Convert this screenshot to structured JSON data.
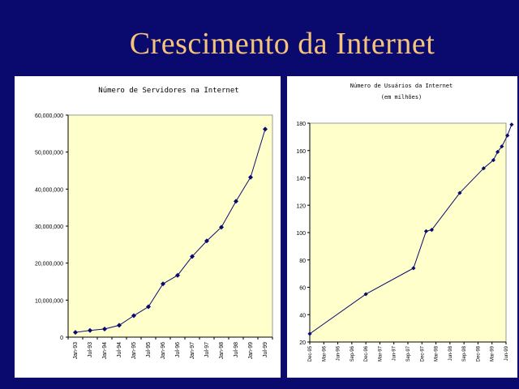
{
  "slide": {
    "title": "Crescimento da Internet"
  },
  "colors": {
    "background": "#0a0a6e",
    "title": "#f5c47a",
    "plot_area": "#ffffcc",
    "line": "#0a0a6e"
  },
  "chart_data": [
    {
      "type": "line",
      "title": "Número de Servidores na Internet",
      "categories": [
        "Jan-93",
        "Jul-93",
        "Jan-94",
        "Jul-94",
        "Jan-95",
        "Jul-95",
        "Jan-96",
        "Jul-96",
        "Jan-97",
        "Jul-97",
        "Jan-98",
        "Jul-98",
        "Jan-99",
        "Jul-99"
      ],
      "values": [
        1300000,
        1800000,
        2200000,
        3200000,
        5800000,
        8200000,
        14400000,
        16700000,
        21800000,
        26000000,
        29700000,
        36700000,
        43200000,
        56200000
      ],
      "yticks": [
        "0",
        "10,000,000",
        "20,000,000",
        "30,000,000",
        "40,000,000",
        "50,000,000",
        "60,000,000"
      ],
      "ylim": [
        0,
        60000000
      ],
      "grid": false
    },
    {
      "type": "line",
      "title": "Número de Usuários da Internet",
      "subtitle": "(em milhões)",
      "categories": [
        "Dec-95",
        "Mar-96",
        "Jun-96",
        "Sep-96",
        "Dec-96",
        "Mar-97",
        "Jun-97",
        "Sep-97",
        "Dec-97",
        "Mar-98",
        "Jun-98",
        "Sep-98",
        "Dec-98",
        "Mar-99",
        "Jun-99"
      ],
      "points": [
        {
          "x": 0,
          "y": 26
        },
        {
          "x": 4,
          "y": 55
        },
        {
          "x": 7.4,
          "y": 74
        },
        {
          "x": 8.3,
          "y": 101
        },
        {
          "x": 8.7,
          "y": 102
        },
        {
          "x": 10.7,
          "y": 129
        },
        {
          "x": 12.4,
          "y": 147
        },
        {
          "x": 13.1,
          "y": 153
        },
        {
          "x": 13.4,
          "y": 159
        },
        {
          "x": 13.7,
          "y": 163
        },
        {
          "x": 14.1,
          "y": 171
        },
        {
          "x": 14.4,
          "y": 179
        }
      ],
      "yticks": [
        "20",
        "40",
        "60",
        "80",
        "100",
        "120",
        "140",
        "160",
        "180"
      ],
      "ylim": [
        20,
        180
      ],
      "grid": false
    }
  ]
}
